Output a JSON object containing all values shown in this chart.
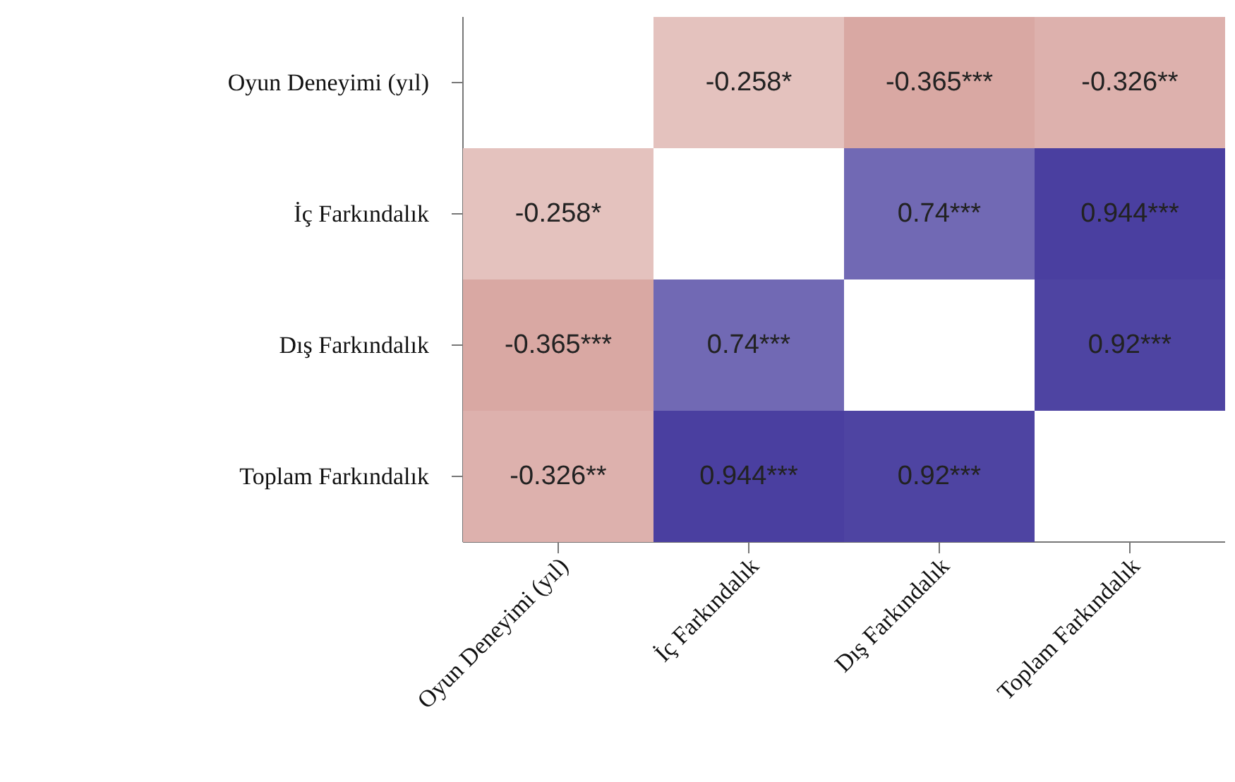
{
  "chart_data": {
    "type": "heatmap",
    "categories": [
      "Oyun Deneyimi (yıl)",
      "İç Farkındalık",
      "Dış Farkındalık",
      "Toplam Farkındalık"
    ],
    "y_categories": [
      "Oyun Deneyimi (yıl)",
      "İç Farkındalık",
      "Dış Farkındalık",
      "Toplam Farkındalık"
    ],
    "cells": [
      [
        null,
        -0.258,
        -0.365,
        -0.326
      ],
      [
        -0.258,
        null,
        0.74,
        0.944
      ],
      [
        -0.365,
        0.74,
        null,
        0.92
      ],
      [
        -0.326,
        0.944,
        0.92,
        null
      ]
    ],
    "cell_labels": [
      [
        null,
        "-0.258*",
        "-0.365***",
        "-0.326**"
      ],
      [
        "-0.258*",
        null,
        "0.74***",
        "0.944***"
      ],
      [
        "-0.365***",
        "0.74***",
        null,
        "0.92***"
      ],
      [
        "-0.326**",
        "0.944***",
        "0.92***",
        null
      ]
    ]
  }
}
